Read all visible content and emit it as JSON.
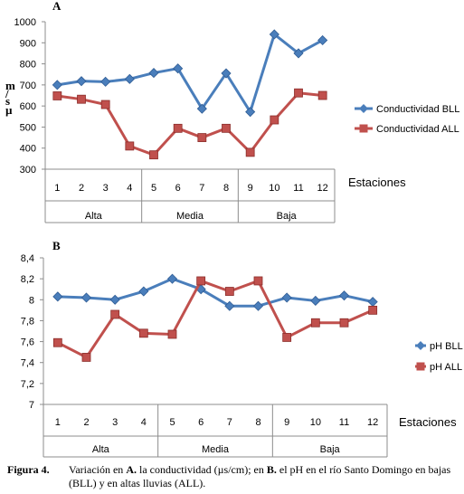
{
  "chart_data": [
    {
      "type": "line",
      "panel_label": "A",
      "ylabel": "m/s µ",
      "ylabel_chars": [
        "m",
        "/",
        "s",
        "µ"
      ],
      "xlabel": "Estaciones",
      "ylim": [
        300,
        1000
      ],
      "yticks": [
        "300",
        "400",
        "500",
        "600",
        "700",
        "800",
        "900",
        "1000"
      ],
      "categories": [
        "1",
        "2",
        "3",
        "4",
        "5",
        "6",
        "7",
        "8",
        "9",
        "10",
        "11",
        "12"
      ],
      "groups": [
        {
          "label": "Alta",
          "span": 4
        },
        {
          "label": "Media",
          "span": 4
        },
        {
          "label": "Baja",
          "span": 4
        }
      ],
      "legend_position": "right",
      "series": [
        {
          "name": "Conductividad  BLL",
          "color": "#4a7ebb",
          "marker": "diamond",
          "values": [
            700,
            718,
            715,
            728,
            757,
            778,
            587,
            755,
            572,
            940,
            850,
            912
          ]
        },
        {
          "name": "Conductividad  ALL",
          "color": "#c0504d",
          "marker": "square",
          "values": [
            648,
            632,
            607,
            410,
            368,
            494,
            450,
            494,
            380,
            534,
            662,
            650
          ]
        }
      ]
    },
    {
      "type": "line",
      "panel_label": "B",
      "xlabel": "Estaciones",
      "ylim": [
        7,
        8.4
      ],
      "yticks": [
        "7",
        "7,2",
        "7,4",
        "7,6",
        "7,8",
        "8",
        "8,2",
        "8,4"
      ],
      "categories": [
        "1",
        "2",
        "3",
        "4",
        "5",
        "6",
        "7",
        "8",
        "9",
        "10",
        "11",
        "12"
      ],
      "groups": [
        {
          "label": "Alta",
          "span": 4
        },
        {
          "label": "Media",
          "span": 4
        },
        {
          "label": "Baja",
          "span": 4
        }
      ],
      "legend_position": "right",
      "series": [
        {
          "name": "pH BLL",
          "color": "#4a7ebb",
          "marker": "diamond",
          "values": [
            8.03,
            8.02,
            8.0,
            8.08,
            8.2,
            8.1,
            7.94,
            7.94,
            8.02,
            7.99,
            8.04,
            7.98
          ]
        },
        {
          "name": "pH ALL",
          "color": "#c0504d",
          "marker": "square",
          "values": [
            7.59,
            7.45,
            7.86,
            7.68,
            7.67,
            8.18,
            8.08,
            8.18,
            7.64,
            7.78,
            7.78,
            7.9
          ]
        }
      ]
    }
  ],
  "caption": {
    "label": "Figura 4.",
    "p1": "Variación en ",
    "b1": "A.",
    "p2": " la conductividad (µs/cm); en ",
    "b2": "B.",
    "p3": " el pH en el río Santo Domingo en bajas (BLL) y en altas lluvias (ALL)."
  }
}
